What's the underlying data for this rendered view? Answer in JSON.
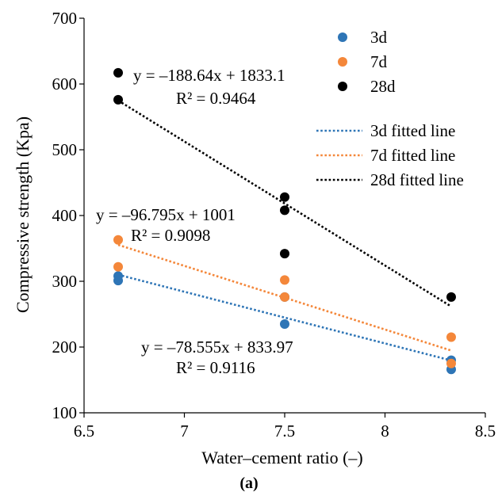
{
  "chart_data": {
    "type": "scatter",
    "xlabel": "Water–cement ratio (–)",
    "ylabel": "Compressive strength (Kpa)",
    "caption": "(a)",
    "xlim": [
      6.5,
      8.5
    ],
    "ylim": [
      100,
      700
    ],
    "xticks": [
      "6.5",
      "7",
      "7.5",
      "8",
      "8.5"
    ],
    "yticks": [
      "100",
      "200",
      "300",
      "400",
      "500",
      "600",
      "700"
    ],
    "grid": false,
    "legend_position": "top-right",
    "series": [
      {
        "name": "3d",
        "color": "#2E75B6",
        "points": [
          [
            6.67,
            308
          ],
          [
            6.67,
            301
          ],
          [
            7.5,
            276
          ],
          [
            7.5,
            235
          ],
          [
            8.33,
            180
          ],
          [
            8.33,
            166
          ]
        ],
        "fit": {
          "name": "3d fitted line",
          "slope": -78.555,
          "intercept": 833.97,
          "x_range": [
            6.67,
            8.33
          ],
          "equation": "y = –78.555x + 833.97",
          "r2": "R² = 0.9116"
        }
      },
      {
        "name": "7d",
        "color": "#F4873A",
        "points": [
          [
            6.67,
            363
          ],
          [
            6.67,
            322
          ],
          [
            7.5,
            302
          ],
          [
            7.5,
            276
          ],
          [
            8.33,
            215
          ],
          [
            8.33,
            175
          ]
        ],
        "fit": {
          "name": "7d fitted line",
          "slope": -96.795,
          "intercept": 1001,
          "x_range": [
            6.67,
            8.33
          ],
          "equation": "y = –96.795x + 1001",
          "r2": "R² = 0.9098"
        }
      },
      {
        "name": "28d",
        "color": "#000000",
        "points": [
          [
            6.67,
            617
          ],
          [
            6.67,
            576
          ],
          [
            7.5,
            428
          ],
          [
            7.5,
            408
          ],
          [
            7.5,
            342
          ],
          [
            8.33,
            276
          ]
        ],
        "fit": {
          "name": "28d fitted line",
          "slope": -188.64,
          "intercept": 1833.1,
          "x_range": [
            6.67,
            8.33
          ],
          "equation": "y = –188.64x + 1833.1",
          "r2": "R² = 0.9464"
        }
      }
    ]
  }
}
